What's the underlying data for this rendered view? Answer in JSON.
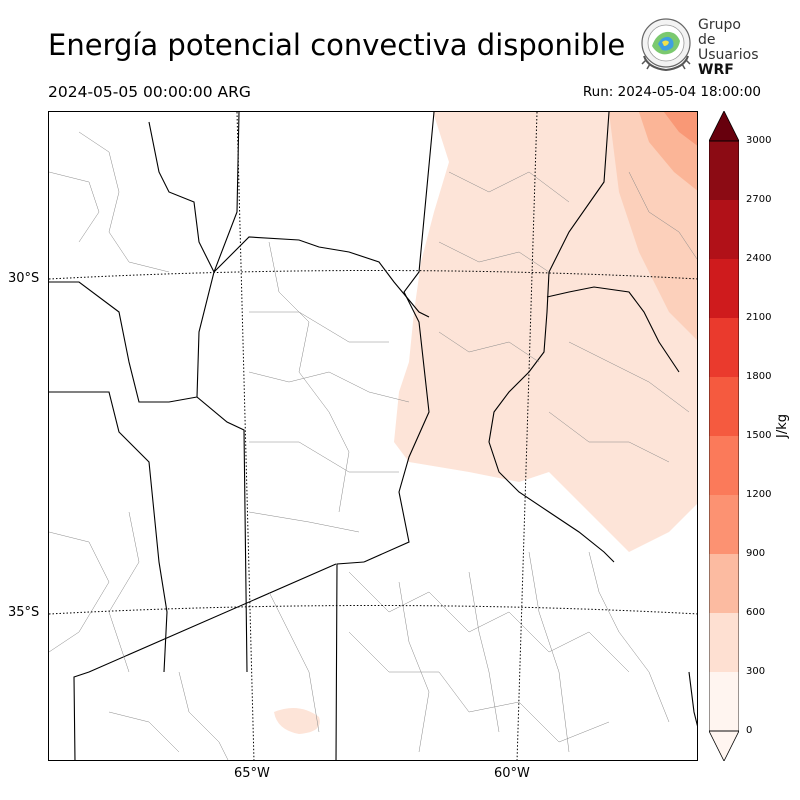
{
  "title": "Energía potencial convectiva disponible",
  "valid_time": "2024-05-05 00:00:00 ARG",
  "run_time": "Run: 2024-05-04 18:00:00",
  "logo": {
    "line1": "Grupo de",
    "line2": "Usuarios",
    "line3": "WRF"
  },
  "map": {
    "lat_labels": [
      "30°S",
      "35°S"
    ],
    "lon_labels": [
      "65°W",
      "60°W"
    ]
  },
  "colorbar": {
    "unit": "J/kg",
    "ticks": [
      "3000",
      "2700",
      "2400",
      "2100",
      "1800",
      "1500",
      "1200",
      "900",
      "600",
      "300",
      "0"
    ],
    "colors": [
      "#fff5f0",
      "#fee0d2",
      "#fcbba1",
      "#fc9272",
      "#fb7a5a",
      "#f55a3f",
      "#ea3a2d",
      "#cf1b1d",
      "#b11118",
      "#8c0b14",
      "#67000d"
    ],
    "extend": "both"
  }
}
